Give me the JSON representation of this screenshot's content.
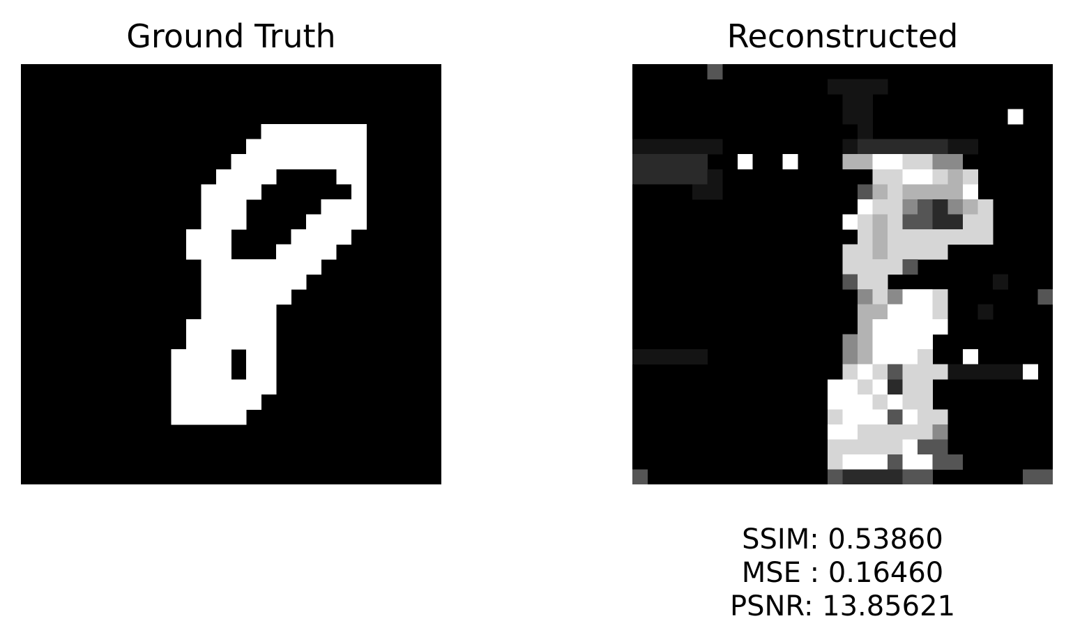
{
  "panels": {
    "left_title": "Ground Truth",
    "right_title": "Reconstructed"
  },
  "metrics": {
    "ssim": "SSIM: 0.53860",
    "mse": "MSE : 0.16460",
    "psnr": "PSNR: 13.85621"
  },
  "images": {
    "grid_size": 28,
    "ground_truth": [
      "0000000000000000000000000000",
      "0000000000000000000000000000",
      "0000000000000000000000000000",
      "0000000000000000000000000000",
      "0000000000000000111111100000",
      "0000000000000001111111100000",
      "0000000000000011111111100000",
      "0000000000000111100001100000",
      "0000000000001111000000100000",
      "0000000000001110000011100000",
      "0000000000001110000111100000",
      "0000000000011100001111000000",
      "0000000000011100011110000000",
      "0000000000001111111100000000",
      "0000000000001111111000000000",
      "0000000000001111110000000000",
      "0000000000001111100000000000",
      "0000000000011111100000000000",
      "0000000000011111100000000000",
      "0000000000111101100000000000",
      "0000000000111101100000000000",
      "0000000000111111100000000000",
      "0000000000111111000000000000",
      "0000000000111110000000000000",
      "0000000000000000000000000000",
      "0000000000000000000000000000",
      "0000000000000000000000000000",
      "0000000000000000000000000000"
    ],
    "reconstructed_levels": "0:#000000, 1:#141414, 2:#2a2a2a, 3:#555555, 4:#8a8a8a, 5:#b3b3b3, 6:#d6d6d6, 7:#ffffff",
    "reconstructed": [
      "0000030000000000000000000000",
      "0000000000000111100000000000",
      "0000000000000011000000000000",
      "0000000000000011000000000700",
      "0000000000000001000000000000",
      "1111110000000012222221100000",
      "2222200700700055776644000000",
      "2222210000000000667765600000",
      "0000110000000003565555700000",
      "0000000000000007664324560000",
      "0000000000000076563322660000",
      "0000000000000006566666660000",
      "0000000000000066566660000000",
      "0000000000000066663000000000",
      "0000000000000036600000001000",
      "0000000000000004647760000003",
      "0000000000000005577760010000",
      "0000000000000005777770000000",
      "0000000000000045777700000000",
      "1111100000000045777600700000",
      "0000000000000067636661111170",
      "0000000000000776726600000000",
      "0000000000000777676600000000",
      "0000000000000677737660000000",
      "0000000000000776666640000000",
      "0000000000000666667330000000",
      "0000000000000677737733000000",
      "3000000000000322223300000033"
    ]
  }
}
